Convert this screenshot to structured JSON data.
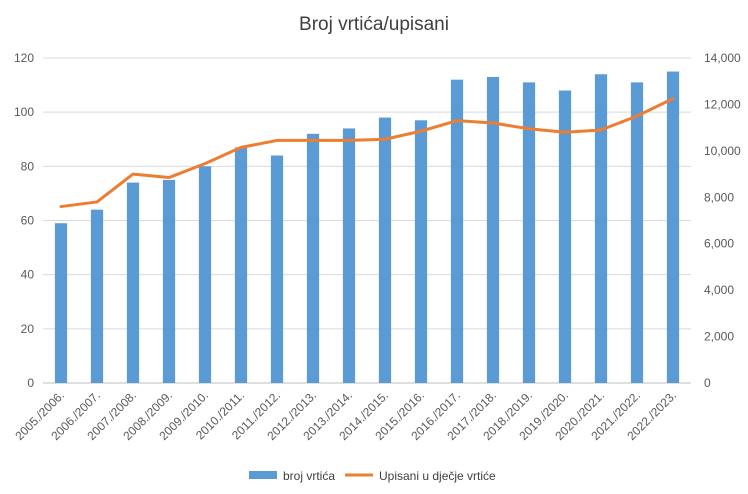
{
  "chart_data": {
    "type": "bar",
    "title": "Broj vrtića/upisani",
    "categories": [
      "2005./2006.",
      "2006./2007.",
      "2007./2008.",
      "2008./2009.",
      "2009./2010.",
      "2010./2011.",
      "2011./2012.",
      "2012./2013.",
      "2013./2014.",
      "2014./2015.",
      "2015./2016.",
      "2016./2017.",
      "2017./2018.",
      "2018./2019.",
      "2019./2020.",
      "2020./2021.",
      "2021./2022.",
      "2022./2023."
    ],
    "series": [
      {
        "name": "broj vrtića",
        "type": "bar",
        "axis": "left",
        "color": "#5B9BD5",
        "values": [
          59,
          64,
          74,
          75,
          80,
          87,
          84,
          92,
          94,
          98,
          97,
          112,
          113,
          111,
          108,
          114,
          111,
          115
        ]
      },
      {
        "name": "Upisani u dječje vrtiće",
        "type": "line",
        "axis": "right",
        "color": "#ED7D31",
        "values": [
          7600,
          7800,
          9000,
          8850,
          9450,
          10150,
          10450,
          10450,
          10450,
          10500,
          10850,
          11300,
          11200,
          10950,
          10800,
          10900,
          11500,
          12250
        ]
      }
    ],
    "y_left": {
      "min": 0,
      "max": 120,
      "ticks": [
        "0",
        "20",
        "40",
        "60",
        "80",
        "100",
        "120"
      ]
    },
    "y_right": {
      "min": 0,
      "max": 14000,
      "ticks": [
        "0",
        "2,000",
        "4,000",
        "6,000",
        "8,000",
        "10,000",
        "12,000",
        "14,000"
      ]
    },
    "grid": true,
    "legend_position": "bottom"
  }
}
